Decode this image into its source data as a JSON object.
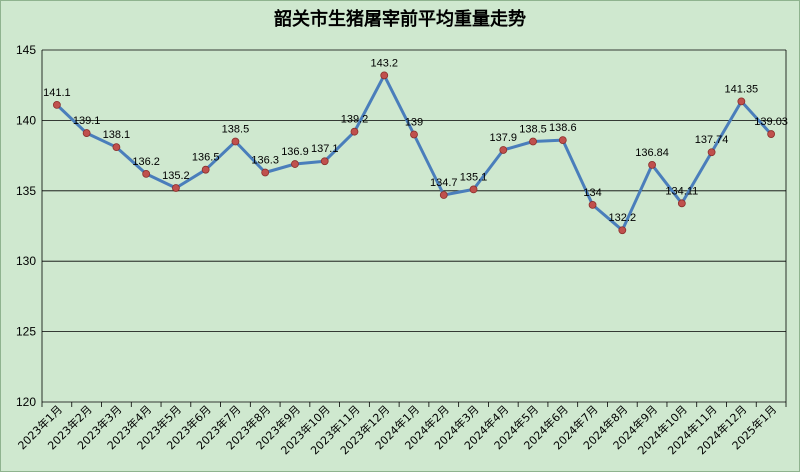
{
  "chart_data": {
    "type": "line",
    "title": "韶关市生猪屠宰前平均重量走势",
    "xlabel": "",
    "ylabel": "",
    "ylim": [
      120,
      145
    ],
    "yticks": [
      120,
      125,
      130,
      135,
      140,
      145
    ],
    "grid": true,
    "legend": "none",
    "categories": [
      "2023年1月",
      "2023年2月",
      "2023年3月",
      "2023年4月",
      "2023年5月",
      "2023年6月",
      "2023年7月",
      "2023年8月",
      "2023年9月",
      "2023年10月",
      "2023年11月",
      "2023年12月",
      "2024年1月",
      "2024年2月",
      "2024年3月",
      "2024年4月",
      "2024年5月",
      "2024年6月",
      "2024年7月",
      "2024年8月",
      "2024年9月",
      "2024年10月",
      "2024年11月",
      "2024年12月",
      "2025年1月"
    ],
    "series": [
      {
        "values": [
          141.1,
          139.1,
          138.1,
          136.2,
          135.2,
          136.5,
          138.5,
          136.3,
          136.9,
          137.1,
          139.2,
          143.2,
          139,
          134.7,
          135.1,
          137.9,
          138.5,
          138.6,
          134,
          132.2,
          136.84,
          134.11,
          137.74,
          141.35,
          139.03
        ],
        "labels": [
          "141.1",
          "139.1",
          "138.1",
          "136.2",
          "135.2",
          "136.5",
          "138.5",
          "136.3",
          "136.9",
          "137.1",
          "139.2",
          "143.2",
          "139",
          "134.7",
          "135.1",
          "137.9",
          "138.5",
          "138.6",
          "134",
          "132.2",
          "136.84",
          "134.11",
          "137.74",
          "141.35",
          "139.03"
        ]
      }
    ],
    "colors": {
      "line": "#4a7ebb",
      "marker": "#c0504d",
      "background": "#cfe8cf",
      "grid": "#000000"
    }
  }
}
